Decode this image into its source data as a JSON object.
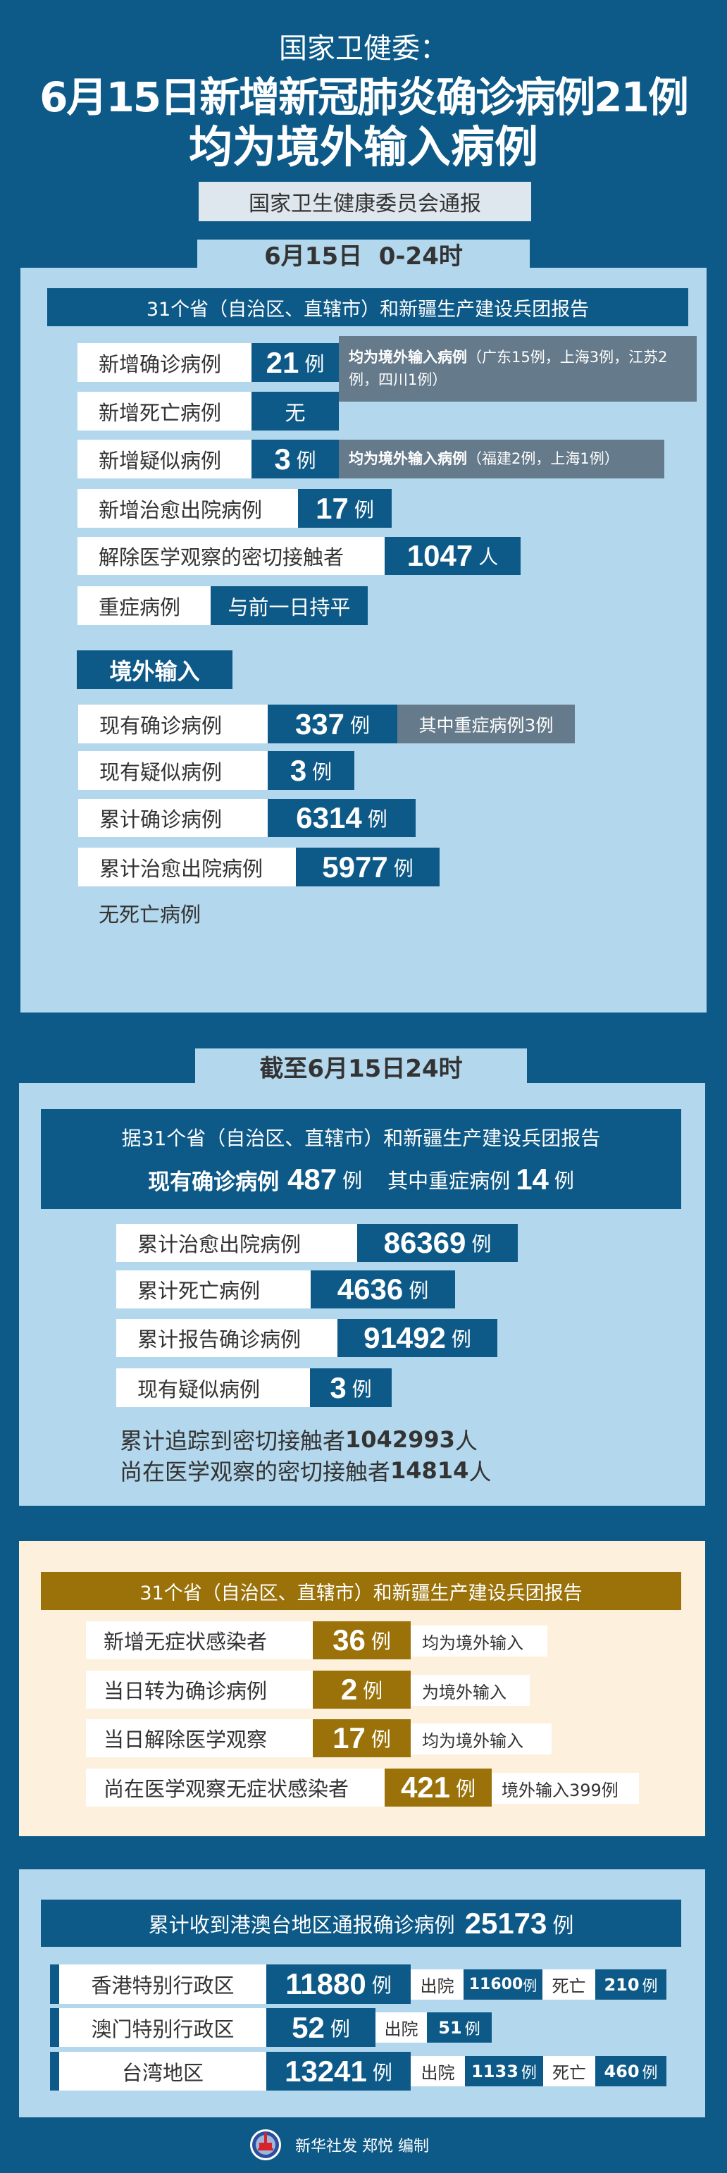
{
  "header": {
    "kicker": "国家卫健委：",
    "title_line1": "6月15日新增新冠肺炎确诊病例21例",
    "title_line2": "均为境外输入病例",
    "source": "国家卫生健康委员会通报"
  },
  "daily": {
    "tab": "6月15日  0-24时",
    "report_header": "31个省（自治区、直辖市）和新疆生产建设兵团报告",
    "rows": [
      {
        "label": "新增确诊病例",
        "value": "21",
        "unit": "例",
        "note_bold": "均为境外输入病例",
        "note": "（广东15例，上海3例，江苏2例，四川1例）"
      },
      {
        "label": "新增死亡病例",
        "value": "无"
      },
      {
        "label": "新增疑似病例",
        "value": "3",
        "unit": "例",
        "note_bold": "均为境外输入病例",
        "note": "（福建2例，上海1例）"
      },
      {
        "label": "新增治愈出院病例",
        "value": "17",
        "unit": "例"
      },
      {
        "label": "解除医学观察的密切接触者",
        "value": "1047",
        "unit": "人"
      },
      {
        "label": "重症病例",
        "value": "与前一日持平"
      }
    ],
    "imported": {
      "title": "境外输入",
      "rows": [
        {
          "label": "现有确诊病例",
          "value": "337",
          "unit": "例",
          "note": "其中重症病例3例"
        },
        {
          "label": "现有疑似病例",
          "value": "3",
          "unit": "例"
        },
        {
          "label": "累计确诊病例",
          "value": "6314",
          "unit": "例"
        },
        {
          "label": "累计治愈出院病例",
          "value": "5977",
          "unit": "例"
        }
      ],
      "footnote": "无死亡病例"
    }
  },
  "cumulative": {
    "tab": "截至6月15日24时",
    "report_header": "据31个省（自治区、直辖市）和新疆生产建设兵团报告",
    "current_label": "现有确诊病例",
    "current_value": "487",
    "severe_label": "其中重症病例",
    "severe_value": "14",
    "unit": "例",
    "rows": [
      {
        "label": "累计治愈出院病例",
        "value": "86369",
        "unit": "例"
      },
      {
        "label": "累计死亡病例",
        "value": "4636",
        "unit": "例"
      },
      {
        "label": "累计报告确诊病例",
        "value": "91492",
        "unit": "例"
      },
      {
        "label": "现有疑似病例",
        "value": "3",
        "unit": "例"
      }
    ],
    "contacts_traced_label": "累计追踪到密切接触者",
    "contacts_traced_value": "1042993",
    "contacts_traced_unit": "人",
    "contacts_observed_label": "尚在医学观察的密切接触者",
    "contacts_observed_value": "14814",
    "contacts_observed_unit": "人"
  },
  "asymptomatic": {
    "report_header": "31个省（自治区、直辖市）和新疆生产建设兵团报告",
    "rows": [
      {
        "label": "新增无症状感染者",
        "value": "36",
        "unit": "例",
        "note": "均为境外输入"
      },
      {
        "label": "当日转为确诊病例",
        "value": "2",
        "unit": "例",
        "note": "为境外输入"
      },
      {
        "label": "当日解除医学观察",
        "value": "17",
        "unit": "例",
        "note": "均为境外输入"
      },
      {
        "label": "尚在医学观察无症状感染者",
        "value": "421",
        "unit": "例",
        "note": "境外输入399例"
      }
    ]
  },
  "hmt": {
    "header_label": "累计收到港澳台地区通报确诊病例",
    "header_value": "25173",
    "unit": "例",
    "discharged_label": "出院",
    "death_label": "死亡",
    "rows": [
      {
        "region": "香港特别行政区",
        "value": "11880",
        "discharged": "11600",
        "deaths": "210"
      },
      {
        "region": "澳门特别行政区",
        "value": "52",
        "discharged": "51"
      },
      {
        "region": "台湾地区",
        "value": "13241",
        "discharged": "1133",
        "deaths": "460"
      }
    ]
  },
  "footer": {
    "credit": "新华社发 郑悦 编制",
    "logo_text": "XINHUA"
  },
  "colors": {
    "dark_blue": "#0d5a88",
    "light_blue": "#b3d7ec",
    "gray": "#657a8a",
    "gold": "#9b720a",
    "cream": "#fdf0dc"
  }
}
